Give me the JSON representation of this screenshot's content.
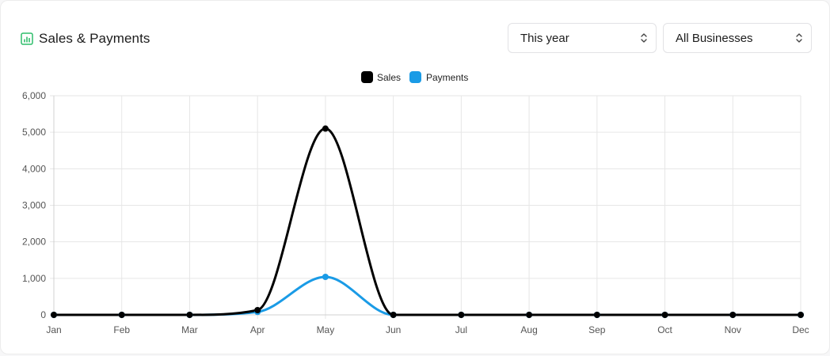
{
  "header": {
    "title": "Sales & Payments",
    "icon": "bar-chart-icon",
    "icon_color": "#2ebd6b"
  },
  "filters": {
    "period": {
      "value": "This year"
    },
    "business": {
      "value": "All Businesses"
    }
  },
  "chart_data": {
    "type": "line",
    "x": [
      "Jan",
      "Feb",
      "Mar",
      "Apr",
      "May",
      "Jun",
      "Jul",
      "Aug",
      "Sep",
      "Oct",
      "Nov",
      "Dec"
    ],
    "series": [
      {
        "name": "Sales",
        "color": "#000000",
        "values": [
          0,
          0,
          0,
          130,
          5100,
          0,
          0,
          0,
          0,
          0,
          0,
          0
        ]
      },
      {
        "name": "Payments",
        "color": "#1a9be6",
        "values": [
          0,
          0,
          0,
          80,
          1040,
          0,
          0,
          0,
          0,
          0,
          0,
          0
        ]
      }
    ],
    "ylim": [
      0,
      6000
    ],
    "yticks": [
      "0",
      "1,000",
      "2,000",
      "3,000",
      "4,000",
      "5,000",
      "6,000"
    ],
    "smooth": true,
    "grid": true,
    "legend_position": "top-center"
  }
}
